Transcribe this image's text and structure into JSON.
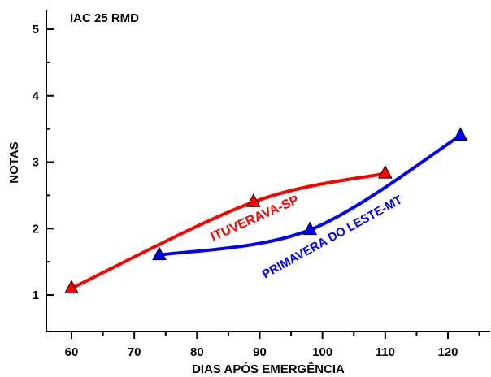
{
  "chart_data": {
    "type": "line",
    "title": "IAC 25 RMD",
    "xlabel": "DIAS APÓS EMERGÊNCIA",
    "ylabel": "NOTAS",
    "xlim": [
      55,
      125
    ],
    "ylim": [
      0.8,
      5.4
    ],
    "x_ticks": [
      60,
      70,
      80,
      90,
      100,
      110,
      120
    ],
    "y_ticks": [
      1,
      2,
      3,
      4,
      5
    ],
    "grid": false,
    "legend": "none",
    "series": [
      {
        "name": "ITUVERAVA-SP",
        "color": "#ff0000",
        "marker": "triangle",
        "x": [
          60,
          89,
          110
        ],
        "y": [
          1.1,
          2.4,
          2.83
        ]
      },
      {
        "name": "PRIMAVERA DO LESTE-MT",
        "color": "#0000ff",
        "marker": "triangle",
        "x": [
          74,
          98,
          122
        ],
        "y": [
          1.6,
          1.98,
          3.4
        ]
      }
    ]
  }
}
